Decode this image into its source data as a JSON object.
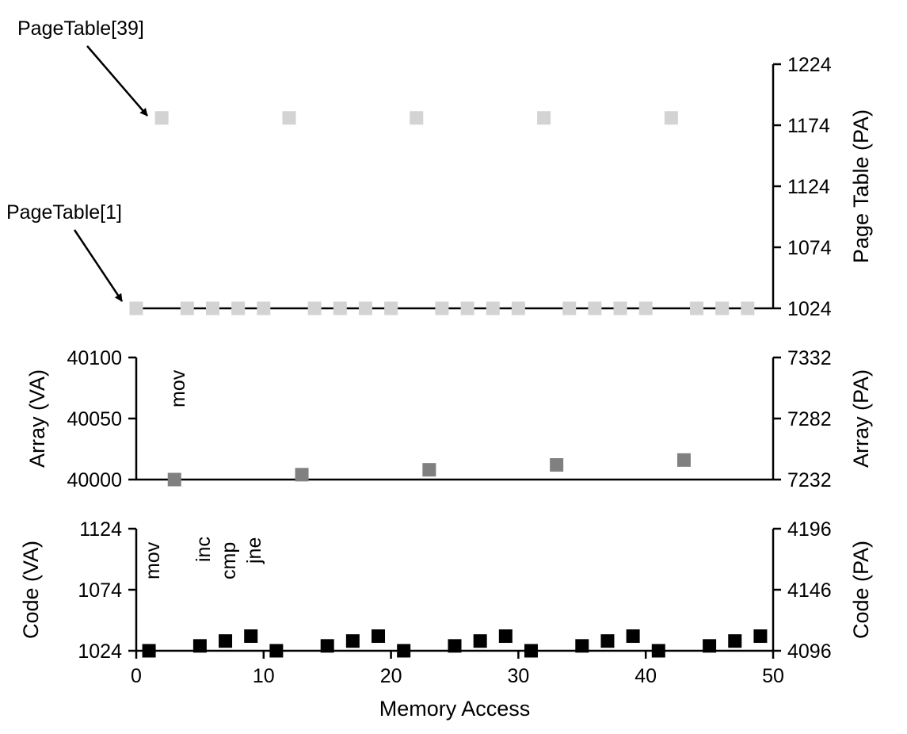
{
  "chart_data": [
    {
      "type": "scatter",
      "panel": "page-table",
      "ylabel_right": "Page Table (PA)",
      "ylim": [
        1024,
        1224
      ],
      "yticks_right": [
        "1024",
        "1074",
        "1124",
        "1174",
        "1224"
      ],
      "marker_color": "#d3d3d3",
      "annotations": [
        "PageTable[39]",
        "PageTable[1]"
      ],
      "points": [
        {
          "x": 0,
          "y": 1024
        },
        {
          "x": 2,
          "y": 1180
        },
        {
          "x": 4,
          "y": 1024
        },
        {
          "x": 6,
          "y": 1024
        },
        {
          "x": 8,
          "y": 1024
        },
        {
          "x": 10,
          "y": 1024
        },
        {
          "x": 12,
          "y": 1180
        },
        {
          "x": 14,
          "y": 1024
        },
        {
          "x": 16,
          "y": 1024
        },
        {
          "x": 18,
          "y": 1024
        },
        {
          "x": 20,
          "y": 1024
        },
        {
          "x": 22,
          "y": 1180
        },
        {
          "x": 24,
          "y": 1024
        },
        {
          "x": 26,
          "y": 1024
        },
        {
          "x": 28,
          "y": 1024
        },
        {
          "x": 30,
          "y": 1024
        },
        {
          "x": 32,
          "y": 1180
        },
        {
          "x": 34,
          "y": 1024
        },
        {
          "x": 36,
          "y": 1024
        },
        {
          "x": 38,
          "y": 1024
        },
        {
          "x": 40,
          "y": 1024
        },
        {
          "x": 42,
          "y": 1180
        },
        {
          "x": 44,
          "y": 1024
        },
        {
          "x": 46,
          "y": 1024
        },
        {
          "x": 48,
          "y": 1024
        }
      ]
    },
    {
      "type": "scatter",
      "panel": "array",
      "ylabel_left": "Array (VA)",
      "ylabel_right": "Array (PA)",
      "ylim": [
        40000,
        40100
      ],
      "yticks_left": [
        "40000",
        "40050",
        "40100"
      ],
      "yticks_right": [
        "7232",
        "7282",
        "7332"
      ],
      "marker_color": "#808080",
      "annotations": [
        "mov"
      ],
      "points": [
        {
          "x": 3,
          "y": 40000
        },
        {
          "x": 13,
          "y": 40004
        },
        {
          "x": 23,
          "y": 40008
        },
        {
          "x": 33,
          "y": 40012
        },
        {
          "x": 43,
          "y": 40016
        }
      ]
    },
    {
      "type": "scatter",
      "panel": "code",
      "ylabel_left": "Code (VA)",
      "ylabel_right": "Code (PA)",
      "xlabel": "Memory Access",
      "xlim": [
        0,
        50
      ],
      "xticks": [
        "0",
        "10",
        "20",
        "30",
        "40",
        "50"
      ],
      "ylim": [
        1024,
        1124
      ],
      "yticks_left": [
        "1024",
        "1074",
        "1124"
      ],
      "yticks_right": [
        "4096",
        "4146",
        "4196"
      ],
      "marker_color": "#000000",
      "annotations": [
        "mov",
        "inc",
        "cmp",
        "jne"
      ],
      "points": [
        {
          "x": 1,
          "y": 1024
        },
        {
          "x": 5,
          "y": 1028
        },
        {
          "x": 7,
          "y": 1032
        },
        {
          "x": 9,
          "y": 1036
        },
        {
          "x": 11,
          "y": 1024
        },
        {
          "x": 15,
          "y": 1028
        },
        {
          "x": 17,
          "y": 1032
        },
        {
          "x": 19,
          "y": 1036
        },
        {
          "x": 21,
          "y": 1024
        },
        {
          "x": 25,
          "y": 1028
        },
        {
          "x": 27,
          "y": 1032
        },
        {
          "x": 29,
          "y": 1036
        },
        {
          "x": 31,
          "y": 1024
        },
        {
          "x": 35,
          "y": 1028
        },
        {
          "x": 37,
          "y": 1032
        },
        {
          "x": 39,
          "y": 1036
        },
        {
          "x": 41,
          "y": 1024
        },
        {
          "x": 45,
          "y": 1028
        },
        {
          "x": 47,
          "y": 1032
        },
        {
          "x": 49,
          "y": 1036
        }
      ]
    }
  ]
}
